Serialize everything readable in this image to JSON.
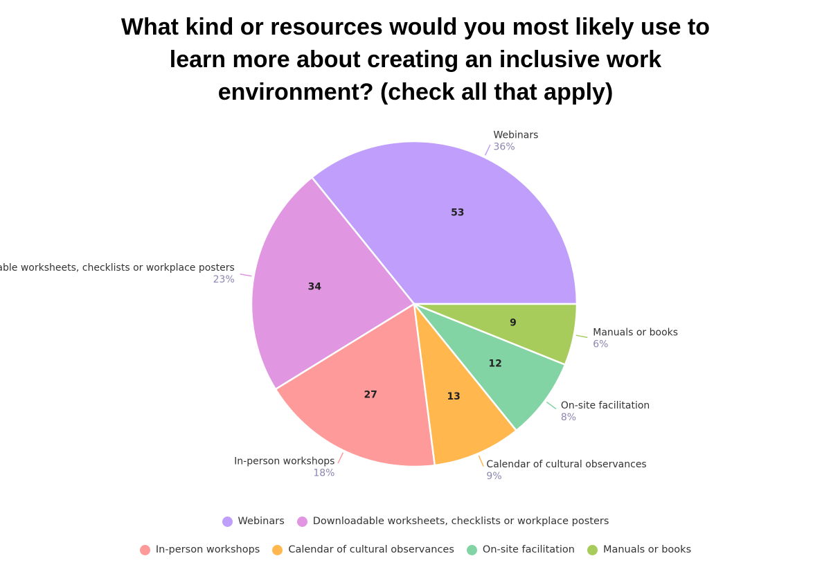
{
  "chart_data": {
    "type": "pie",
    "title": "What kind or resources would you most likely use to learn more about creating an inclusive work environment? (check all that apply)",
    "categories": [
      "Webinars",
      "Downloadable worksheets, checklists or workplace posters",
      "In-person workshops",
      "Calendar of cultural observances",
      "On-site facilitation",
      "Manuals or books"
    ],
    "values": [
      53,
      34,
      27,
      13,
      12,
      9
    ],
    "percent_labels": [
      "36%",
      "23%",
      "18%",
      "9%",
      "8%",
      "6%"
    ],
    "colors": [
      "#bf9ffb",
      "#e096e0",
      "#fe9a9a",
      "#ffb74e",
      "#83d4a4",
      "#a8cc5c"
    ],
    "legend": "bottom"
  }
}
